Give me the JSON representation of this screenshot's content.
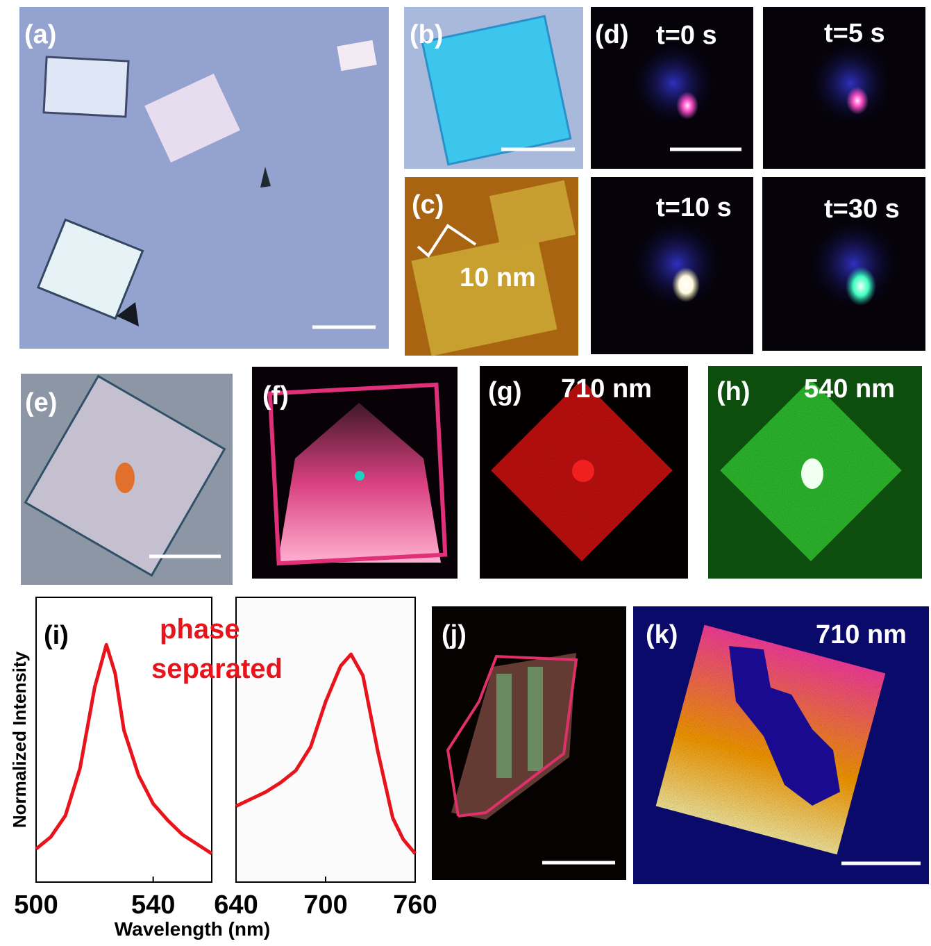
{
  "panels": {
    "a": {
      "label": "(a)"
    },
    "b": {
      "label": "(b)"
    },
    "c": {
      "label": "(c)",
      "annotation": "10 nm"
    },
    "d": {
      "label": "(d)",
      "times": [
        "t=0 s",
        "t=5 s",
        "t=10 s",
        "t=30 s"
      ]
    },
    "e": {
      "label": "(e)"
    },
    "f": {
      "label": "(f)"
    },
    "g": {
      "label": "(g)",
      "annotation": "710 nm"
    },
    "h": {
      "label": "(h)",
      "annotation": "540 nm"
    },
    "j": {
      "label": "(j)"
    },
    "k": {
      "label": "(k)",
      "annotation": "710 nm"
    }
  },
  "chart_data": [
    {
      "type": "line",
      "panel_label": "(i)",
      "y_label": "Normalized Intensity",
      "x_label": "Wavelength (nm)",
      "annotations": [
        "phase",
        "separated"
      ],
      "xlim": [
        500,
        560
      ],
      "xticks": [
        500,
        540
      ],
      "ylim": [
        0,
        1.2
      ],
      "color": "#e8141c",
      "x": [
        500,
        505,
        510,
        515,
        520,
        524,
        527,
        530,
        535,
        540,
        545,
        550,
        555,
        560
      ],
      "values": [
        0.14,
        0.19,
        0.28,
        0.48,
        0.82,
        1.0,
        0.88,
        0.64,
        0.45,
        0.33,
        0.26,
        0.2,
        0.16,
        0.12
      ]
    },
    {
      "type": "line",
      "xlim": [
        640,
        760
      ],
      "xticks": [
        640,
        700,
        760
      ],
      "ylim": [
        0,
        1.2
      ],
      "color": "#e8141c",
      "x": [
        640,
        650,
        660,
        670,
        680,
        690,
        700,
        710,
        717,
        725,
        735,
        745,
        752,
        760
      ],
      "values": [
        0.32,
        0.35,
        0.38,
        0.42,
        0.47,
        0.57,
        0.76,
        0.91,
        0.96,
        0.87,
        0.55,
        0.27,
        0.18,
        0.12
      ]
    }
  ]
}
